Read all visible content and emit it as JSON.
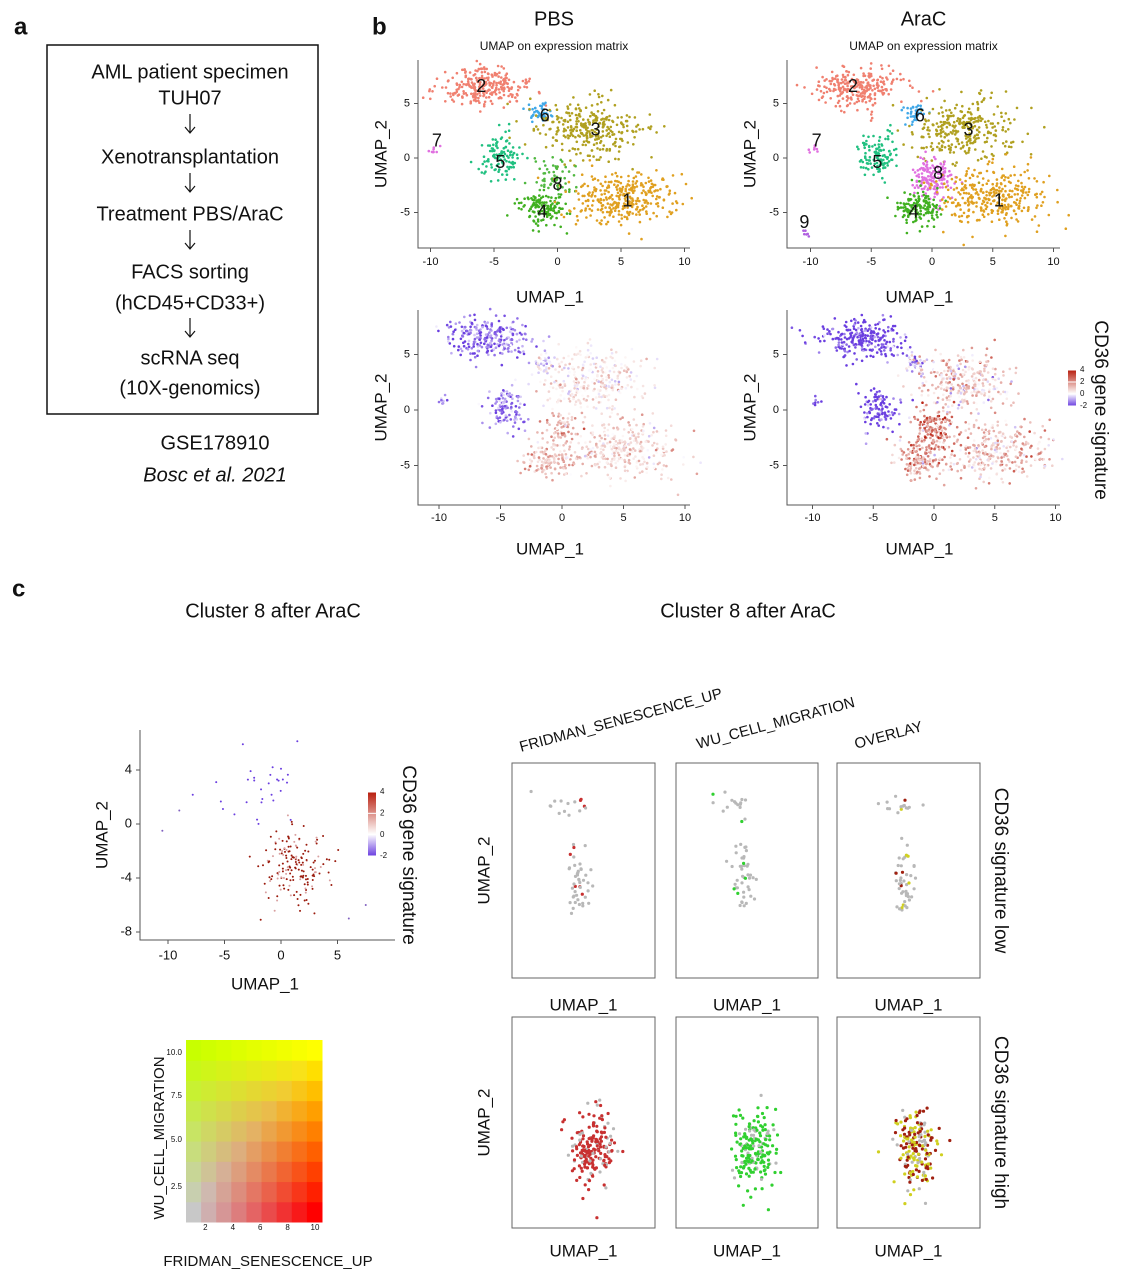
{
  "panel_a": {
    "label": "a",
    "steps": [
      "AML patient specimen",
      "TUH07",
      "Xenotransplantation",
      "Treatment PBS/AraC",
      "FACS sorting",
      "(hCD45+CD33+)",
      "scRNA seq",
      "(10X-genomics)"
    ],
    "accession": "GSE178910",
    "citation": "Bosc et al. 2021"
  },
  "panel_b": {
    "label": "b",
    "columns": [
      "PBS",
      "AraC"
    ],
    "subtitle": "UMAP on expression matrix",
    "x_label": "UMAP_1",
    "y_label": "UMAP_2",
    "xticks": [
      -10,
      -5,
      0,
      5,
      10
    ],
    "yticks": [
      5,
      0,
      -5
    ],
    "pbs_clusters": [
      "2",
      "6",
      "3",
      "7",
      "5",
      "8",
      "4",
      "1"
    ],
    "arac_clusters": [
      "2",
      "6",
      "3",
      "7",
      "5",
      "8",
      "4",
      "1",
      "9"
    ],
    "colorbar_title": "CD36 gene signature",
    "colorbar_ticks": [
      4,
      2,
      0,
      -2
    ]
  },
  "panel_c": {
    "label": "c",
    "title": "Cluster 8 after AraC",
    "x_label": "UMAP_1",
    "y_label": "UMAP_2",
    "xticks": [
      -10,
      -5,
      0,
      5
    ],
    "yticks": [
      4,
      0,
      -4,
      -8
    ],
    "colorbar_title": "CD36 gene signature",
    "colorbar_ticks": [
      4,
      2,
      0,
      -2
    ],
    "legend": {
      "y_label": "WU_CELL_MIGRATION",
      "x_label": "FRIDMAN_SENESCENCE_UP",
      "yticks": [
        "10.0",
        "7.5",
        "5.0",
        "2.5"
      ],
      "xticks": [
        2,
        4,
        6,
        8,
        10
      ]
    },
    "columns": [
      "FRIDMAN_SENESCENCE_UP",
      "WU_CELL_MIGRATION",
      "OVERLAY"
    ],
    "rows": [
      "CD36 signature low",
      "CD36 signature high"
    ]
  }
}
